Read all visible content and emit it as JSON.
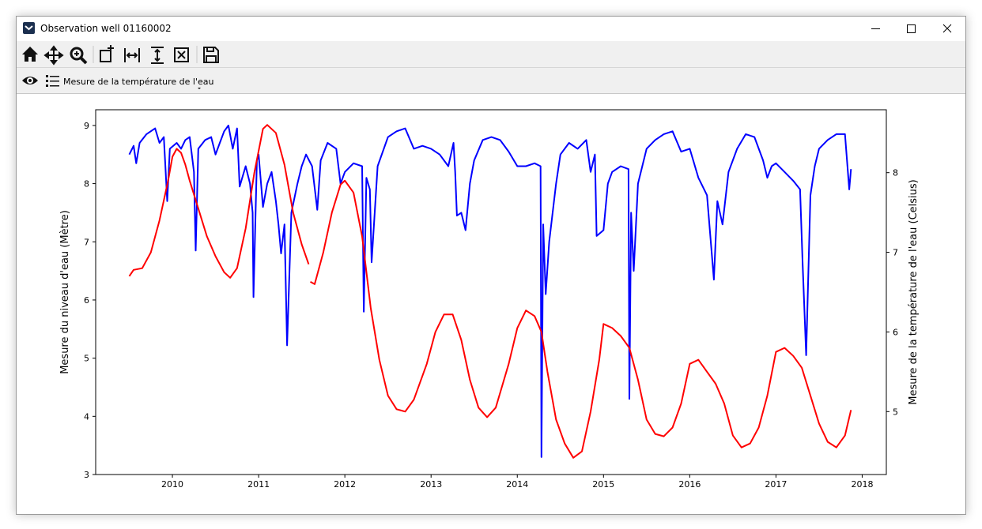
{
  "window": {
    "title": "Observation well 01160002"
  },
  "toolbar": {
    "layer_label": "Mesure de la température de l'eau"
  },
  "chart_data": {
    "type": "line",
    "ylabel": "Mesure du niveau d'eau (Mètre)",
    "y2label": "Mesure de la température de l'eau (Celsius)",
    "xlim": [
      2009.11,
      2018.28
    ],
    "xticks": [
      2010,
      2011,
      2012,
      2013,
      2014,
      2015,
      2016,
      2017,
      2018
    ],
    "ylim": [
      3,
      9.27
    ],
    "yticks": [
      3,
      4,
      5,
      6,
      7,
      8,
      9
    ],
    "y2lim": [
      4.21,
      8.79
    ],
    "y2ticks": [
      5,
      6,
      7,
      8
    ],
    "series": [
      {
        "color": "#0000ff",
        "axis": "y",
        "x": [
          2009.5,
          2009.55,
          2009.58,
          2009.62,
          2009.7,
          2009.8,
          2009.85,
          2009.9,
          2009.94,
          2009.97,
          2010.05,
          2010.1,
          2010.15,
          2010.2,
          2010.25,
          2010.27,
          2010.3,
          2010.38,
          2010.45,
          2010.5,
          2010.55,
          2010.6,
          2010.65,
          2010.7,
          2010.75,
          2010.78,
          2010.85,
          2010.9,
          2010.93,
          2010.94,
          2010.98,
          2011.0,
          2011.05,
          2011.1,
          2011.15,
          2011.2,
          2011.23,
          2011.26,
          2011.3,
          2011.33,
          2011.38,
          2011.45,
          2011.5,
          2011.55,
          2011.62,
          2011.68,
          2011.72,
          2011.8,
          2011.9,
          2011.95,
          2012.0,
          2012.1,
          2012.2,
          2012.22,
          2012.25,
          2012.29,
          2012.31,
          2012.38,
          2012.5,
          2012.6,
          2012.7,
          2012.8,
          2012.9,
          2013.0,
          2013.1,
          2013.2,
          2013.26,
          2013.28,
          2013.3,
          2013.35,
          2013.4,
          2013.45,
          2013.5,
          2013.6,
          2013.7,
          2013.8,
          2013.9,
          2014.0,
          2014.1,
          2014.2,
          2014.27,
          2014.28,
          2014.3,
          2014.33,
          2014.37,
          2014.45,
          2014.5,
          2014.6,
          2014.7,
          2014.8,
          2014.85,
          2014.9,
          2014.92,
          2015.0,
          2015.05,
          2015.1,
          2015.2,
          2015.29,
          2015.3,
          2015.32,
          2015.35,
          2015.4,
          2015.5,
          2015.6,
          2015.7,
          2015.8,
          2015.9,
          2016.0,
          2016.1,
          2016.2,
          2016.28,
          2016.32,
          2016.38,
          2016.45,
          2016.55,
          2016.65,
          2016.75,
          2016.85,
          2016.9,
          2016.95,
          2017.0,
          2017.1,
          2017.2,
          2017.28,
          2017.31,
          2017.35,
          2017.4,
          2017.45,
          2017.5,
          2017.6,
          2017.7,
          2017.8,
          2017.85,
          2017.87
        ],
        "values": [
          8.5,
          8.65,
          8.35,
          8.7,
          8.85,
          8.95,
          8.7,
          8.8,
          7.7,
          8.6,
          8.7,
          8.6,
          8.75,
          8.8,
          8.2,
          6.85,
          8.6,
          8.75,
          8.8,
          8.5,
          8.7,
          8.9,
          9.0,
          8.6,
          8.95,
          7.95,
          8.3,
          8.0,
          7.5,
          6.05,
          8.4,
          8.5,
          7.6,
          8.0,
          8.2,
          7.7,
          7.3,
          6.8,
          7.3,
          5.22,
          7.5,
          8.0,
          8.3,
          8.5,
          8.3,
          7.55,
          8.4,
          8.7,
          8.6,
          8.0,
          8.2,
          8.35,
          8.3,
          5.8,
          8.1,
          7.9,
          6.65,
          8.3,
          8.8,
          8.9,
          8.95,
          8.6,
          8.65,
          8.6,
          8.5,
          8.3,
          8.7,
          8.2,
          7.45,
          7.5,
          7.2,
          8.0,
          8.4,
          8.75,
          8.8,
          8.75,
          8.55,
          8.3,
          8.3,
          8.35,
          8.3,
          3.3,
          7.3,
          6.1,
          7.0,
          8.0,
          8.5,
          8.7,
          8.6,
          8.75,
          8.2,
          8.5,
          7.1,
          7.2,
          8.0,
          8.2,
          8.3,
          8.25,
          4.3,
          7.5,
          6.5,
          8.0,
          8.6,
          8.75,
          8.85,
          8.9,
          8.55,
          8.6,
          8.1,
          7.8,
          6.35,
          7.7,
          7.3,
          8.2,
          8.6,
          8.85,
          8.8,
          8.4,
          8.1,
          8.3,
          8.35,
          8.2,
          8.05,
          7.9,
          6.6,
          5.05,
          7.8,
          8.3,
          8.6,
          8.75,
          8.85,
          8.85,
          7.9,
          8.25
        ]
      },
      {
        "color": "#ff0000",
        "axis": "y2",
        "x": [
          2009.5,
          2009.55,
          2009.65,
          2009.75,
          2009.85,
          2009.95,
          2010.0,
          2010.05,
          2010.1,
          2010.15,
          2010.2,
          2010.3,
          2010.4,
          2010.5,
          2010.6,
          2010.67,
          2010.75,
          2010.85,
          2010.95,
          2011.05,
          2011.1,
          2011.2,
          2011.3,
          2011.4,
          2011.5,
          2011.58,
          2011.59,
          2011.6,
          2011.65,
          2011.75,
          2011.85,
          2011.95,
          2012.0,
          2012.1,
          2012.2,
          2012.3,
          2012.4,
          2012.5,
          2012.6,
          2012.7,
          2012.8,
          2012.95,
          2013.05,
          2013.15,
          2013.25,
          2013.35,
          2013.45,
          2013.55,
          2013.65,
          2013.75,
          2013.9,
          2014.0,
          2014.1,
          2014.2,
          2014.28,
          2014.35,
          2014.45,
          2014.55,
          2014.65,
          2014.75,
          2014.85,
          2014.95,
          2015.0,
          2015.1,
          2015.2,
          2015.3,
          2015.4,
          2015.5,
          2015.6,
          2015.7,
          2015.8,
          2015.9,
          2016.0,
          2016.1,
          2016.2,
          2016.3,
          2016.4,
          2016.5,
          2016.6,
          2016.7,
          2016.8,
          2016.9,
          2017.0,
          2017.1,
          2017.2,
          2017.3,
          2017.4,
          2017.5,
          2017.6,
          2017.7,
          2017.8,
          2017.87
        ],
        "values": [
          6.7,
          6.78,
          6.8,
          7.0,
          7.4,
          7.9,
          8.2,
          8.3,
          8.25,
          8.1,
          7.9,
          7.55,
          7.2,
          6.95,
          6.75,
          6.68,
          6.8,
          7.3,
          8.0,
          8.55,
          8.6,
          8.5,
          8.1,
          7.5,
          7.1,
          6.85,
          null,
          6.63,
          6.6,
          7.0,
          7.5,
          7.85,
          7.9,
          7.75,
          7.2,
          6.3,
          5.65,
          5.2,
          5.03,
          5.0,
          5.15,
          5.6,
          6.0,
          6.22,
          6.22,
          5.9,
          5.4,
          5.05,
          4.93,
          5.05,
          5.6,
          6.05,
          6.27,
          6.2,
          6.0,
          5.5,
          4.9,
          4.6,
          4.42,
          4.5,
          5.0,
          5.65,
          6.1,
          6.05,
          5.95,
          5.8,
          5.4,
          4.9,
          4.72,
          4.69,
          4.8,
          5.1,
          5.6,
          5.65,
          5.5,
          5.35,
          5.1,
          4.7,
          4.55,
          4.6,
          4.8,
          5.2,
          5.75,
          5.8,
          5.7,
          5.55,
          5.2,
          4.85,
          4.62,
          4.55,
          4.7,
          5.02
        ]
      }
    ]
  }
}
